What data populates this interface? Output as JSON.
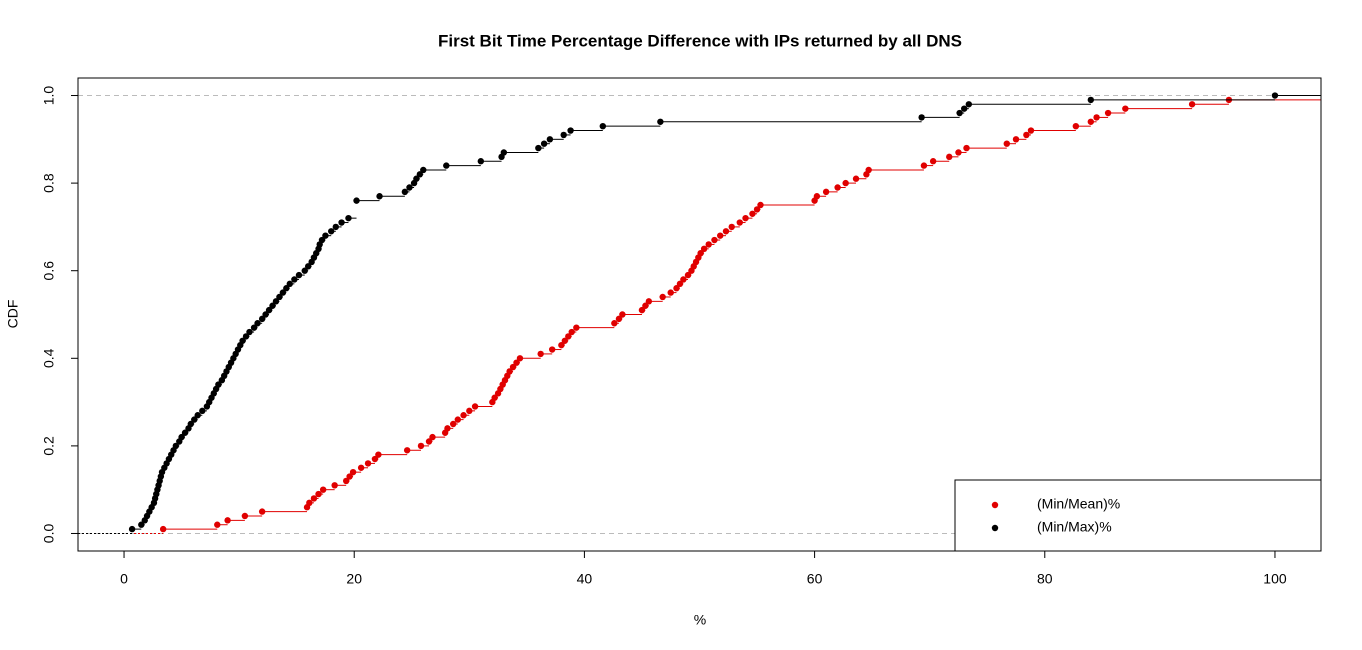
{
  "chart_data": {
    "type": "ecdf",
    "title": "First Bit Time Percentage Difference with IPs returned by all DNS",
    "x_label": "%",
    "y_label": "CDF",
    "xlim": [
      -4,
      104
    ],
    "ylim": [
      -0.04,
      1.04
    ],
    "xticks": [
      0,
      20,
      40,
      60,
      80,
      100
    ],
    "yticks": [
      {
        "value": 0,
        "label": "0.0"
      },
      0.2,
      0.4,
      0.6,
      0.8,
      {
        "value": 1,
        "label": "1.0"
      }
    ],
    "reference_lines": [
      0,
      1
    ],
    "legend": "bottom-right",
    "series": [
      {
        "name": "(Min/Mean)%",
        "color": "#e00000",
        "x": [
          3.4,
          8.1,
          9.0,
          10.5,
          12.0,
          15.9,
          16.1,
          16.5,
          16.9,
          17.3,
          18.3,
          19.3,
          19.6,
          19.9,
          20.6,
          21.2,
          21.8,
          22.1,
          24.6,
          25.8,
          26.5,
          26.8,
          27.9,
          28.1,
          28.6,
          29.0,
          29.5,
          30.0,
          30.5,
          32.0,
          32.2,
          32.5,
          32.7,
          32.9,
          33.1,
          33.3,
          33.5,
          33.8,
          34.1,
          34.4,
          36.2,
          37.2,
          38.0,
          38.3,
          38.6,
          38.9,
          39.3,
          42.6,
          43.0,
          43.3,
          45.0,
          45.3,
          45.6,
          46.8,
          47.5,
          48.0,
          48.3,
          48.6,
          49.0,
          49.3,
          49.5,
          49.7,
          49.9,
          50.1,
          50.4,
          50.8,
          51.3,
          51.8,
          52.3,
          52.8,
          53.5,
          54.0,
          54.6,
          55.0,
          55.3,
          60.0,
          60.2,
          61.0,
          62.0,
          62.7,
          63.6,
          64.5,
          64.7,
          69.5,
          70.3,
          71.7,
          72.5,
          73.2,
          76.7,
          77.5,
          78.4,
          78.8,
          82.7,
          84.0,
          84.5,
          85.5,
          87.0,
          92.8,
          96.0
        ],
        "values": [
          0.01,
          0.02,
          0.03,
          0.04,
          0.05,
          0.06,
          0.07,
          0.08,
          0.09,
          0.1,
          0.11,
          0.12,
          0.13,
          0.14,
          0.15,
          0.16,
          0.17,
          0.18,
          0.19,
          0.2,
          0.21,
          0.22,
          0.23,
          0.24,
          0.25,
          0.26,
          0.27,
          0.28,
          0.29,
          0.3,
          0.31,
          0.32,
          0.33,
          0.34,
          0.35,
          0.36,
          0.37,
          0.38,
          0.39,
          0.4,
          0.41,
          0.42,
          0.43,
          0.44,
          0.45,
          0.46,
          0.47,
          0.48,
          0.49,
          0.5,
          0.51,
          0.52,
          0.53,
          0.54,
          0.55,
          0.56,
          0.57,
          0.58,
          0.59,
          0.6,
          0.61,
          0.62,
          0.63,
          0.64,
          0.65,
          0.66,
          0.67,
          0.68,
          0.69,
          0.7,
          0.71,
          0.72,
          0.73,
          0.74,
          0.75,
          0.76,
          0.77,
          0.78,
          0.79,
          0.8,
          0.81,
          0.82,
          0.83,
          0.84,
          0.85,
          0.86,
          0.87,
          0.88,
          0.89,
          0.9,
          0.91,
          0.92,
          0.93,
          0.94,
          0.95,
          0.96,
          0.97,
          0.98,
          0.99
        ]
      },
      {
        "name": "(Min/Max)%",
        "color": "#000000",
        "x": [
          0.7,
          1.5,
          1.8,
          2.0,
          2.2,
          2.4,
          2.6,
          2.7,
          2.8,
          2.9,
          3.0,
          3.1,
          3.2,
          3.3,
          3.5,
          3.7,
          3.9,
          4.1,
          4.3,
          4.5,
          4.8,
          5.0,
          5.3,
          5.6,
          5.8,
          6.1,
          6.4,
          6.8,
          7.2,
          7.4,
          7.6,
          7.8,
          8.0,
          8.2,
          8.5,
          8.7,
          8.9,
          9.1,
          9.3,
          9.5,
          9.7,
          9.9,
          10.1,
          10.3,
          10.6,
          10.9,
          11.3,
          11.6,
          12.0,
          12.3,
          12.6,
          12.9,
          13.2,
          13.5,
          13.8,
          14.1,
          14.4,
          14.8,
          15.2,
          15.7,
          16.0,
          16.3,
          16.5,
          16.7,
          16.9,
          17.0,
          17.2,
          17.5,
          18.0,
          18.4,
          18.9,
          19.5,
          20.2,
          22.2,
          24.4,
          24.8,
          25.2,
          25.4,
          25.7,
          26.0,
          28.0,
          31.0,
          32.8,
          33.0,
          36.0,
          36.5,
          37.0,
          38.2,
          38.8,
          41.6,
          46.6,
          69.3,
          72.6,
          73.0,
          73.4,
          84.0,
          100
        ],
        "values": [
          0.01,
          0.02,
          0.03,
          0.04,
          0.05,
          0.06,
          0.07,
          0.08,
          0.09,
          0.1,
          0.11,
          0.12,
          0.13,
          0.14,
          0.15,
          0.16,
          0.17,
          0.18,
          0.19,
          0.2,
          0.21,
          0.22,
          0.23,
          0.24,
          0.25,
          0.26,
          0.27,
          0.28,
          0.29,
          0.3,
          0.31,
          0.32,
          0.33,
          0.34,
          0.35,
          0.36,
          0.37,
          0.38,
          0.39,
          0.4,
          0.41,
          0.42,
          0.43,
          0.44,
          0.45,
          0.46,
          0.47,
          0.48,
          0.49,
          0.5,
          0.51,
          0.52,
          0.53,
          0.54,
          0.55,
          0.56,
          0.57,
          0.58,
          0.59,
          0.6,
          0.61,
          0.62,
          0.63,
          0.64,
          0.65,
          0.66,
          0.67,
          0.68,
          0.69,
          0.7,
          0.71,
          0.72,
          0.76,
          0.77,
          0.78,
          0.79,
          0.8,
          0.81,
          0.82,
          0.83,
          0.84,
          0.85,
          0.86,
          0.87,
          0.88,
          0.89,
          0.9,
          0.91,
          0.92,
          0.93,
          0.94,
          0.95,
          0.96,
          0.97,
          0.98,
          0.99,
          1.0
        ]
      }
    ]
  }
}
